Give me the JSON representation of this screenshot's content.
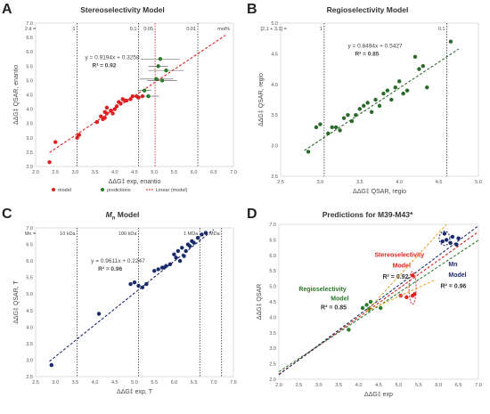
{
  "chart_data": [
    {
      "panel": "A",
      "title": "Stereoselectivity Model",
      "type": "scatter",
      "xlabel": "ΔΔG‡ exp, enantio",
      "ylabel": "ΔΔG‡ QSAR, enantio",
      "xlim": [
        2.0,
        7.0
      ],
      "ylim": [
        2.0,
        7.0
      ],
      "x_ticks": [
        "2.0",
        "2.5",
        "3.0",
        "3.5",
        "4.0",
        "4.5",
        "5.0",
        "5.5",
        "6.0",
        "6.5",
        "7.0"
      ],
      "y_ticks": [
        "2.0",
        "2.5",
        "3.0",
        "3.5",
        "4.0",
        "4.5",
        "5.0",
        "5.5",
        "6.0",
        "6.5",
        "7.0"
      ],
      "top_scale": {
        "unit": "mol%",
        "labels": [
          {
            "text": "2 d =",
            "x": 2.05,
            "color": "#333333"
          },
          {
            "text": "1",
            "x": 3.05,
            "color": "#333333"
          },
          {
            "text": "0.1",
            "x": 4.6,
            "color": "#333333"
          },
          {
            "text": "0.05",
            "x": 5.02,
            "color": "#d01010"
          },
          {
            "text": "0.01",
            "x": 6.1,
            "color": "#333333"
          }
        ]
      },
      "vlines": [
        {
          "x": 3.05,
          "color": "#333333"
        },
        {
          "x": 4.6,
          "color": "#333333"
        },
        {
          "x": 5.02,
          "color": "#d01010"
        },
        {
          "x": 6.1,
          "color": "#333333"
        }
      ],
      "equation": "y = 0.9194x + 0.3258",
      "r2": "R² = 0.92",
      "fit": {
        "slope": 0.9194,
        "intercept": 0.3258,
        "x_range": [
          2.35,
          6.8
        ],
        "color": "#e02020"
      },
      "legend": [
        "model",
        "predictions",
        "Linear (model)"
      ],
      "series": [
        {
          "name": "model",
          "color": "#e02020",
          "points": [
            [
              2.35,
              2.15
            ],
            [
              2.5,
              2.85
            ],
            [
              3.05,
              3.0
            ],
            [
              3.1,
              3.1
            ],
            [
              3.55,
              3.55
            ],
            [
              3.65,
              3.75
            ],
            [
              3.7,
              3.65
            ],
            [
              3.75,
              3.7
            ],
            [
              3.75,
              3.9
            ],
            [
              3.8,
              3.85
            ],
            [
              3.8,
              4.05
            ],
            [
              3.9,
              3.95
            ],
            [
              3.95,
              3.85
            ],
            [
              4.0,
              4.0
            ],
            [
              4.05,
              4.1
            ],
            [
              4.1,
              4.25
            ],
            [
              4.15,
              4.2
            ],
            [
              4.2,
              4.35
            ],
            [
              4.25,
              4.3
            ],
            [
              4.3,
              4.3
            ],
            [
              4.4,
              4.35
            ],
            [
              4.45,
              4.45
            ],
            [
              4.55,
              4.45
            ],
            [
              4.6,
              4.4
            ],
            [
              4.7,
              4.45
            ]
          ]
        },
        {
          "name": "predictions",
          "color": "#2a7a2a",
          "points": [
            [
              4.75,
              4.65,
              0.35
            ],
            [
              4.85,
              4.45,
              0.55
            ],
            [
              5.05,
              5.05,
              0.85
            ],
            [
              5.1,
              5.5,
              0.5
            ],
            [
              5.15,
              5.75,
              1.0
            ],
            [
              5.2,
              5.0,
              0.75
            ],
            [
              5.3,
              5.35,
              0.9
            ]
          ]
        }
      ]
    },
    {
      "panel": "B",
      "title": "Regioselectivity Model",
      "type": "scatter",
      "xlabel": "ΔΔG‡ QSAR, regio",
      "ylabel": "ΔΔG‡ QSAR, regio",
      "xlim": [
        2.5,
        5.0
      ],
      "ylim": [
        2.5,
        5.0
      ],
      "x_ticks": [
        "2.5",
        "3.0",
        "3.5",
        "4.0",
        "4.5",
        "5.0"
      ],
      "y_ticks": [
        "2.5",
        "3.0",
        "3.5",
        "4.0",
        "4.5",
        "5.0"
      ],
      "top_scale": {
        "unit": "",
        "labels": [
          {
            "text": "[2,1 + 3,1] =",
            "x": 2.6,
            "color": "#333333"
          },
          {
            "text": "1",
            "x": 3.05,
            "color": "#333333"
          },
          {
            "text": "0.1",
            "x": 4.6,
            "color": "#333333"
          }
        ]
      },
      "vlines": [
        {
          "x": 3.05,
          "color": "#333333"
        },
        {
          "x": 4.6,
          "color": "#333333"
        }
      ],
      "equation": "y = 0.8494x + 0.5427",
      "r2": "R² = 0.85",
      "fit": {
        "slope": 0.8494,
        "intercept": 0.5427,
        "x_range": [
          2.8,
          4.75
        ],
        "color": "#2a6a2a"
      },
      "series": [
        {
          "name": "data",
          "color": "#2a6a2a",
          "points": [
            [
              2.85,
              2.9
            ],
            [
              2.95,
              3.3
            ],
            [
              3.0,
              3.35
            ],
            [
              3.1,
              3.2
            ],
            [
              3.15,
              3.3
            ],
            [
              3.2,
              3.3
            ],
            [
              3.25,
              3.25
            ],
            [
              3.3,
              3.45
            ],
            [
              3.35,
              3.5
            ],
            [
              3.4,
              3.4
            ],
            [
              3.45,
              3.5
            ],
            [
              3.5,
              3.6
            ],
            [
              3.55,
              3.65
            ],
            [
              3.6,
              3.7
            ],
            [
              3.65,
              3.55
            ],
            [
              3.7,
              3.75
            ],
            [
              3.75,
              3.65
            ],
            [
              3.8,
              3.85
            ],
            [
              3.85,
              3.9
            ],
            [
              3.9,
              3.75
            ],
            [
              3.95,
              3.95
            ],
            [
              4.0,
              4.05
            ],
            [
              4.05,
              3.85
            ],
            [
              4.1,
              3.9
            ],
            [
              4.2,
              4.45
            ],
            [
              4.25,
              4.25
            ],
            [
              4.3,
              4.3
            ],
            [
              4.35,
              3.95
            ],
            [
              4.65,
              4.7
            ]
          ]
        }
      ]
    },
    {
      "panel": "C",
      "title": "Mn Model",
      "type": "scatter",
      "xlabel": "ΔΔG‡ exp, T",
      "ylabel": "ΔΔG‡ QSAR, T",
      "xlim": [
        2.5,
        7.5
      ],
      "ylim": [
        2.5,
        7.0
      ],
      "x_ticks": [
        "2.5",
        "3.0",
        "3.5",
        "4.0",
        "4.5",
        "5.0",
        "5.5",
        "6.0",
        "6.5",
        "7.0",
        "7.5"
      ],
      "y_ticks": [
        "2.5",
        "3.0",
        "3.5",
        "4.0",
        "4.5",
        "5.0",
        "5.5",
        "6.0",
        "6.5",
        "7.0"
      ],
      "top_scale": {
        "unit": "",
        "labels": [
          {
            "text": "Mn =",
            "x": 2.55,
            "color": "#333333"
          },
          {
            "text": "10 kDa",
            "x": 3.55,
            "color": "#333333"
          },
          {
            "text": "100 kDa",
            "x": 5.1,
            "color": "#333333"
          },
          {
            "text": "1 MDa",
            "x": 6.65,
            "color": "#333333"
          },
          {
            "text": "2 MDa",
            "x": 7.2,
            "color": "#333333"
          }
        ]
      },
      "vlines": [
        {
          "x": 3.55,
          "color": "#333333"
        },
        {
          "x": 5.1,
          "color": "#333333"
        },
        {
          "x": 6.65,
          "color": "#333333"
        },
        {
          "x": 7.2,
          "color": "#333333"
        }
      ],
      "equation": "y = 0.9611x + 0.2247",
      "r2": "R² = 0.96",
      "fit": {
        "slope": 0.9611,
        "intercept": 0.2247,
        "x_range": [
          2.85,
          7.0
        ],
        "color": "#1a2a6a"
      },
      "series": [
        {
          "name": "data",
          "color": "#1a2a6a",
          "points": [
            [
              2.9,
              2.85
            ],
            [
              4.1,
              4.4
            ],
            [
              4.9,
              5.3
            ],
            [
              5.0,
              5.35
            ],
            [
              5.1,
              5.25
            ],
            [
              5.2,
              5.2
            ],
            [
              5.3,
              5.3
            ],
            [
              5.5,
              5.7
            ],
            [
              5.6,
              5.75
            ],
            [
              5.7,
              5.8
            ],
            [
              5.75,
              5.8
            ],
            [
              5.8,
              5.85
            ],
            [
              5.9,
              5.9
            ],
            [
              6.0,
              6.2
            ],
            [
              6.05,
              6.1
            ],
            [
              6.1,
              6.3
            ],
            [
              6.15,
              6.0
            ],
            [
              6.2,
              6.4
            ],
            [
              6.25,
              6.15
            ],
            [
              6.3,
              6.3
            ],
            [
              6.35,
              6.5
            ],
            [
              6.4,
              6.45
            ],
            [
              6.45,
              6.6
            ],
            [
              6.5,
              6.55
            ],
            [
              6.6,
              6.7
            ],
            [
              6.7,
              6.8
            ],
            [
              6.8,
              6.85
            ]
          ]
        }
      ]
    },
    {
      "panel": "D",
      "title": "Predictions for M39-M43*",
      "type": "scatter",
      "xlabel": "ΔΔG‡ exp",
      "ylabel": "ΔΔG‡ QSAR",
      "xlim": [
        2.0,
        7.0
      ],
      "ylim": [
        2.0,
        7.0
      ],
      "x_ticks": [
        "2.0",
        "2.5",
        "3.0",
        "3.5",
        "4.0",
        "4.5",
        "5.0",
        "5.5",
        "6.0",
        "6.5",
        "7.0"
      ],
      "y_ticks": [
        "2.0",
        "2.5",
        "3.0",
        "3.5",
        "4.0",
        "4.5",
        "5.0",
        "5.5",
        "6.0",
        "6.5",
        "7.0"
      ],
      "labels": [
        {
          "text": "Stereoselectivity",
          "color": "#e02020"
        },
        {
          "text": "Model",
          "color": "#e02020"
        },
        {
          "text": "R² = 0.92",
          "color": "#333333"
        },
        {
          "text": "Regioselectivity",
          "color": "#2a7a2a"
        },
        {
          "text": "Model",
          "color": "#2a7a2a"
        },
        {
          "text": "R² = 0.85",
          "color": "#333333"
        },
        {
          "text": "Mn",
          "color": "#1a2a6a"
        },
        {
          "text": "Model",
          "color": "#1a2a6a"
        },
        {
          "text": "R² = 0.96",
          "color": "#333333"
        }
      ],
      "fits": [
        {
          "slope": 0.9194,
          "intercept": 0.3258,
          "color": "#e02020"
        },
        {
          "slope": 0.8494,
          "intercept": 0.5427,
          "color": "#2a7a2a"
        },
        {
          "slope": 0.9611,
          "intercept": 0.2247,
          "color": "#1a2a6a"
        }
      ],
      "series": [
        {
          "name": "stereo",
          "color": "#e02020",
          "points": [
            [
              5.05,
              4.7
            ],
            [
              5.2,
              4.65
            ],
            [
              5.35,
              4.7
            ],
            [
              5.4,
              4.75
            ],
            [
              5.35,
              5.35
            ]
          ]
        },
        {
          "name": "regio",
          "color": "#2a7a2a",
          "points": [
            [
              3.75,
              3.6
            ],
            [
              4.1,
              4.3
            ],
            [
              4.2,
              4.4
            ],
            [
              4.25,
              4.25
            ],
            [
              4.3,
              4.5
            ],
            [
              4.55,
              4.3
            ]
          ]
        },
        {
          "name": "mn",
          "color": "#1a2a6a",
          "points": [
            [
              6.1,
              6.45
            ],
            [
              6.15,
              6.7
            ],
            [
              6.2,
              6.5
            ],
            [
              6.3,
              6.4
            ],
            [
              6.35,
              6.6
            ],
            [
              6.45,
              6.35
            ],
            [
              6.5,
              6.55
            ]
          ]
        }
      ]
    }
  ]
}
